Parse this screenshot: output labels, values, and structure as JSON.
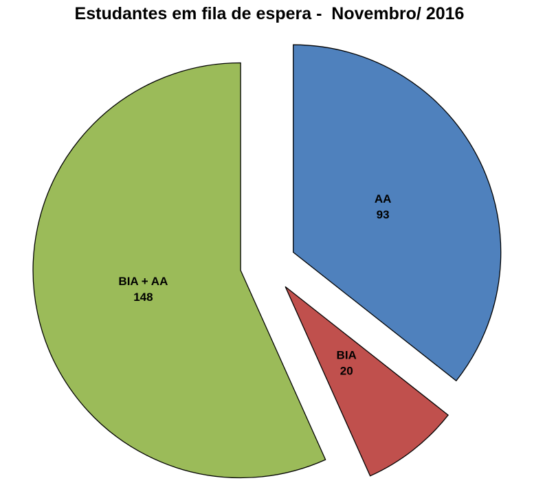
{
  "chart_data": {
    "type": "pie",
    "title": "Estudantes em fila de espera -  Novembro/ 2016",
    "slices": [
      {
        "label": "AA",
        "value": 93,
        "color": "#4F81BD"
      },
      {
        "label": "BIA",
        "value": 20,
        "color": "#C0504D"
      },
      {
        "label": "BIA + AA",
        "value": 148,
        "color": "#9BBB59"
      }
    ],
    "total": 261,
    "start_angle_deg": 90,
    "direction": "clockwise",
    "explode_fraction": 0.135,
    "label_radius_fraction": 0.48,
    "stroke_color": "#000000",
    "background": "#FFFFFF",
    "legend": "none",
    "label_format": "label_newline_value"
  }
}
